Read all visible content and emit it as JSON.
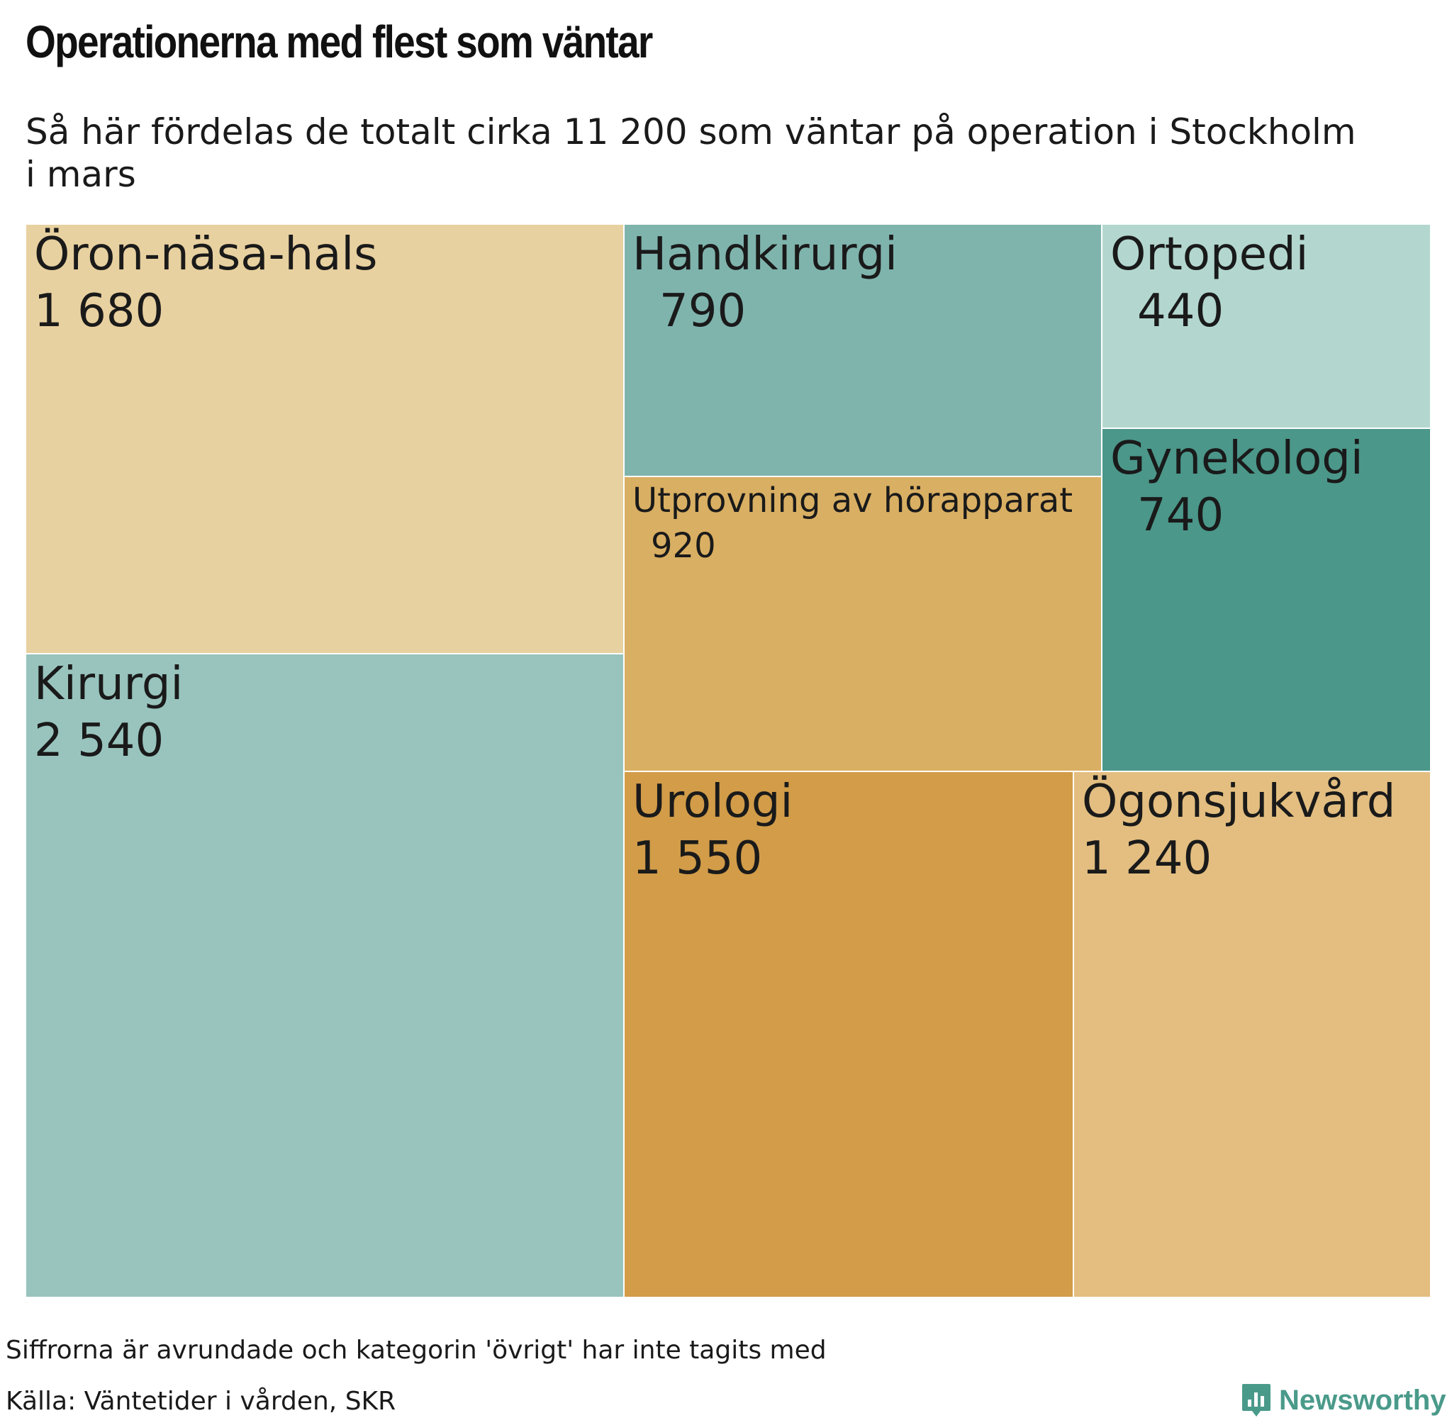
{
  "title": "Operationerna med flest som väntar",
  "subtitle": "Så här fördelas de totalt cirka 11 200 som väntar på operation i Stockholm i mars",
  "chart_data": {
    "type": "treemap",
    "items": [
      {
        "label": "Öron-näsa-hals",
        "value_label": "1 680",
        "value": 1680,
        "color": "#e8d1a0"
      },
      {
        "label": "Kirurgi",
        "value_label": "2 540",
        "value": 2540,
        "color": "#98c4bd"
      },
      {
        "label": "Handkirurgi",
        "value_label": "790",
        "value": 790,
        "color": "#7fb4ad"
      },
      {
        "label": "Utprovning av hörapparat",
        "value_label": "920",
        "value": 920,
        "color": "#d9af63"
      },
      {
        "label": "Ortopedi",
        "value_label": "440",
        "value": 440,
        "color": "#b3d7cf"
      },
      {
        "label": "Gynekologi",
        "value_label": "740",
        "value": 740,
        "color": "#4b978a"
      },
      {
        "label": "Urologi",
        "value_label": "1 550",
        "value": 1550,
        "color": "#d29c48"
      },
      {
        "label": "Ögonsjukvård",
        "value_label": "1 240",
        "value": 1240,
        "color": "#e3be80"
      }
    ]
  },
  "footer": {
    "note": "Siffrorna är avrundade och kategorin 'övrigt' har inte tagits med",
    "source": "Källa: Väntetider i vården, SKR",
    "brand": "Newsworthy",
    "brand_color": "#4a9a8a"
  }
}
